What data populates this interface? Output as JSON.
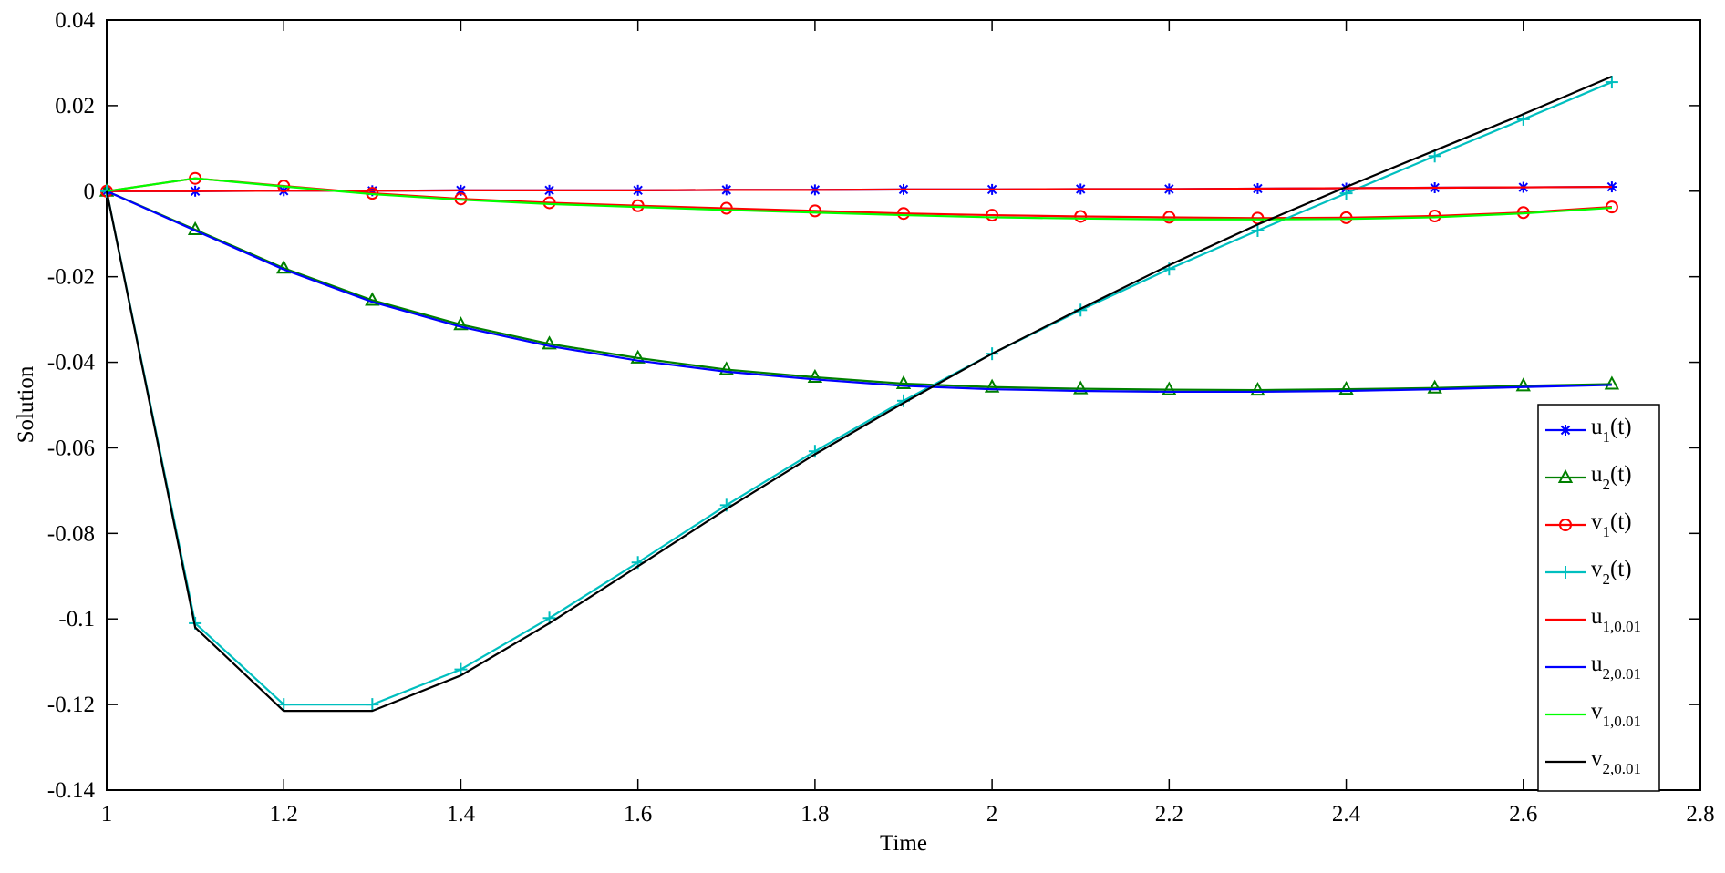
{
  "chart_data": {
    "type": "line",
    "xlabel": "Time",
    "ylabel": "Solution",
    "xlim": [
      1,
      2.8
    ],
    "ylim": [
      -0.14,
      0.04
    ],
    "x_ticks": [
      "1",
      "1.2",
      "1.4",
      "1.6",
      "1.8",
      "2",
      "2.2",
      "2.4",
      "2.6",
      "2.8"
    ],
    "y_ticks": [
      "0.04",
      "0.02",
      "0",
      "-0.02",
      "-0.04",
      "-0.06",
      "-0.08",
      "-0.1",
      "-0.12",
      "-0.14"
    ],
    "grid": false,
    "legend_position": "bottom-right",
    "x": [
      1.0,
      1.1,
      1.2,
      1.3,
      1.4,
      1.5,
      1.6,
      1.7,
      1.8,
      1.9,
      2.0,
      2.1,
      2.2,
      2.3,
      2.4,
      2.5,
      2.6,
      2.7
    ],
    "series": [
      {
        "label_main": "u",
        "label_sub": "1",
        "label_suffix": "(t)",
        "color": "#0000ff",
        "marker": "star",
        "values": [
          0,
          0,
          0.0001,
          0.0001,
          0.0002,
          0.0002,
          0.0002,
          0.0003,
          0.0003,
          0.0004,
          0.0004,
          0.0005,
          0.0005,
          0.0006,
          0.0007,
          0.0008,
          0.0009,
          0.001
        ]
      },
      {
        "label_main": "u",
        "label_sub": "2",
        "label_suffix": "(t)",
        "color": "#008000",
        "marker": "triangle",
        "values": [
          0,
          -0.009,
          -0.018,
          -0.0255,
          -0.0312,
          -0.0357,
          -0.039,
          -0.0417,
          -0.0435,
          -0.045,
          -0.0458,
          -0.0462,
          -0.0464,
          -0.0465,
          -0.0463,
          -0.046,
          -0.0455,
          -0.0451
        ]
      },
      {
        "label_main": "v",
        "label_sub": "1",
        "label_suffix": "(t)",
        "color": "#ff0000",
        "marker": "circle",
        "values": [
          0,
          0.003,
          0.0012,
          -0.0005,
          -0.0018,
          -0.0027,
          -0.0034,
          -0.004,
          -0.0046,
          -0.0052,
          -0.0056,
          -0.0059,
          -0.0061,
          -0.0063,
          -0.0062,
          -0.0058,
          -0.005,
          -0.0037
        ]
      },
      {
        "label_main": "v",
        "label_sub": "2",
        "label_suffix": "(t)",
        "color": "#00bfbf",
        "marker": "plus",
        "values": [
          0,
          -0.101,
          -0.12,
          -0.12,
          -0.1118,
          -0.0998,
          -0.0868,
          -0.0734,
          -0.0608,
          -0.049,
          -0.038,
          -0.0278,
          -0.0182,
          -0.0092,
          -0.0005,
          0.0082,
          0.0168,
          0.0255
        ]
      },
      {
        "label_main": "u",
        "label_sub": "1,0.01",
        "label_suffix": "",
        "color": "#ff0000",
        "marker": "none",
        "values": [
          0,
          0,
          0.0001,
          0.0001,
          0.0002,
          0.0002,
          0.0002,
          0.0003,
          0.0003,
          0.0004,
          0.0004,
          0.0005,
          0.0005,
          0.0006,
          0.0007,
          0.0008,
          0.0009,
          0.001
        ]
      },
      {
        "label_main": "u",
        "label_sub": "2,0.01",
        "label_suffix": "",
        "color": "#0000ff",
        "marker": "none",
        "values": [
          0,
          -0.0092,
          -0.0183,
          -0.0259,
          -0.0317,
          -0.0362,
          -0.0396,
          -0.0422,
          -0.044,
          -0.0455,
          -0.0463,
          -0.0467,
          -0.0469,
          -0.0469,
          -0.0467,
          -0.0463,
          -0.0458,
          -0.0453
        ]
      },
      {
        "label_main": "v",
        "label_sub": "1,0.01",
        "label_suffix": "",
        "color": "#00ff00",
        "marker": "none",
        "values": [
          0,
          0.003,
          0.0011,
          -0.0007,
          -0.002,
          -0.003,
          -0.0037,
          -0.0044,
          -0.005,
          -0.0056,
          -0.0061,
          -0.0064,
          -0.0066,
          -0.0066,
          -0.0065,
          -0.0061,
          -0.0052,
          -0.0039
        ]
      },
      {
        "label_main": "v",
        "label_sub": "2,0.01",
        "label_suffix": "",
        "color": "#000000",
        "marker": "none",
        "values": [
          0,
          -0.102,
          -0.1215,
          -0.1215,
          -0.1132,
          -0.101,
          -0.0877,
          -0.0743,
          -0.0615,
          -0.0495,
          -0.038,
          -0.0275,
          -0.0173,
          -0.0078,
          0.001,
          0.0095,
          0.018,
          0.0268
        ]
      }
    ]
  }
}
